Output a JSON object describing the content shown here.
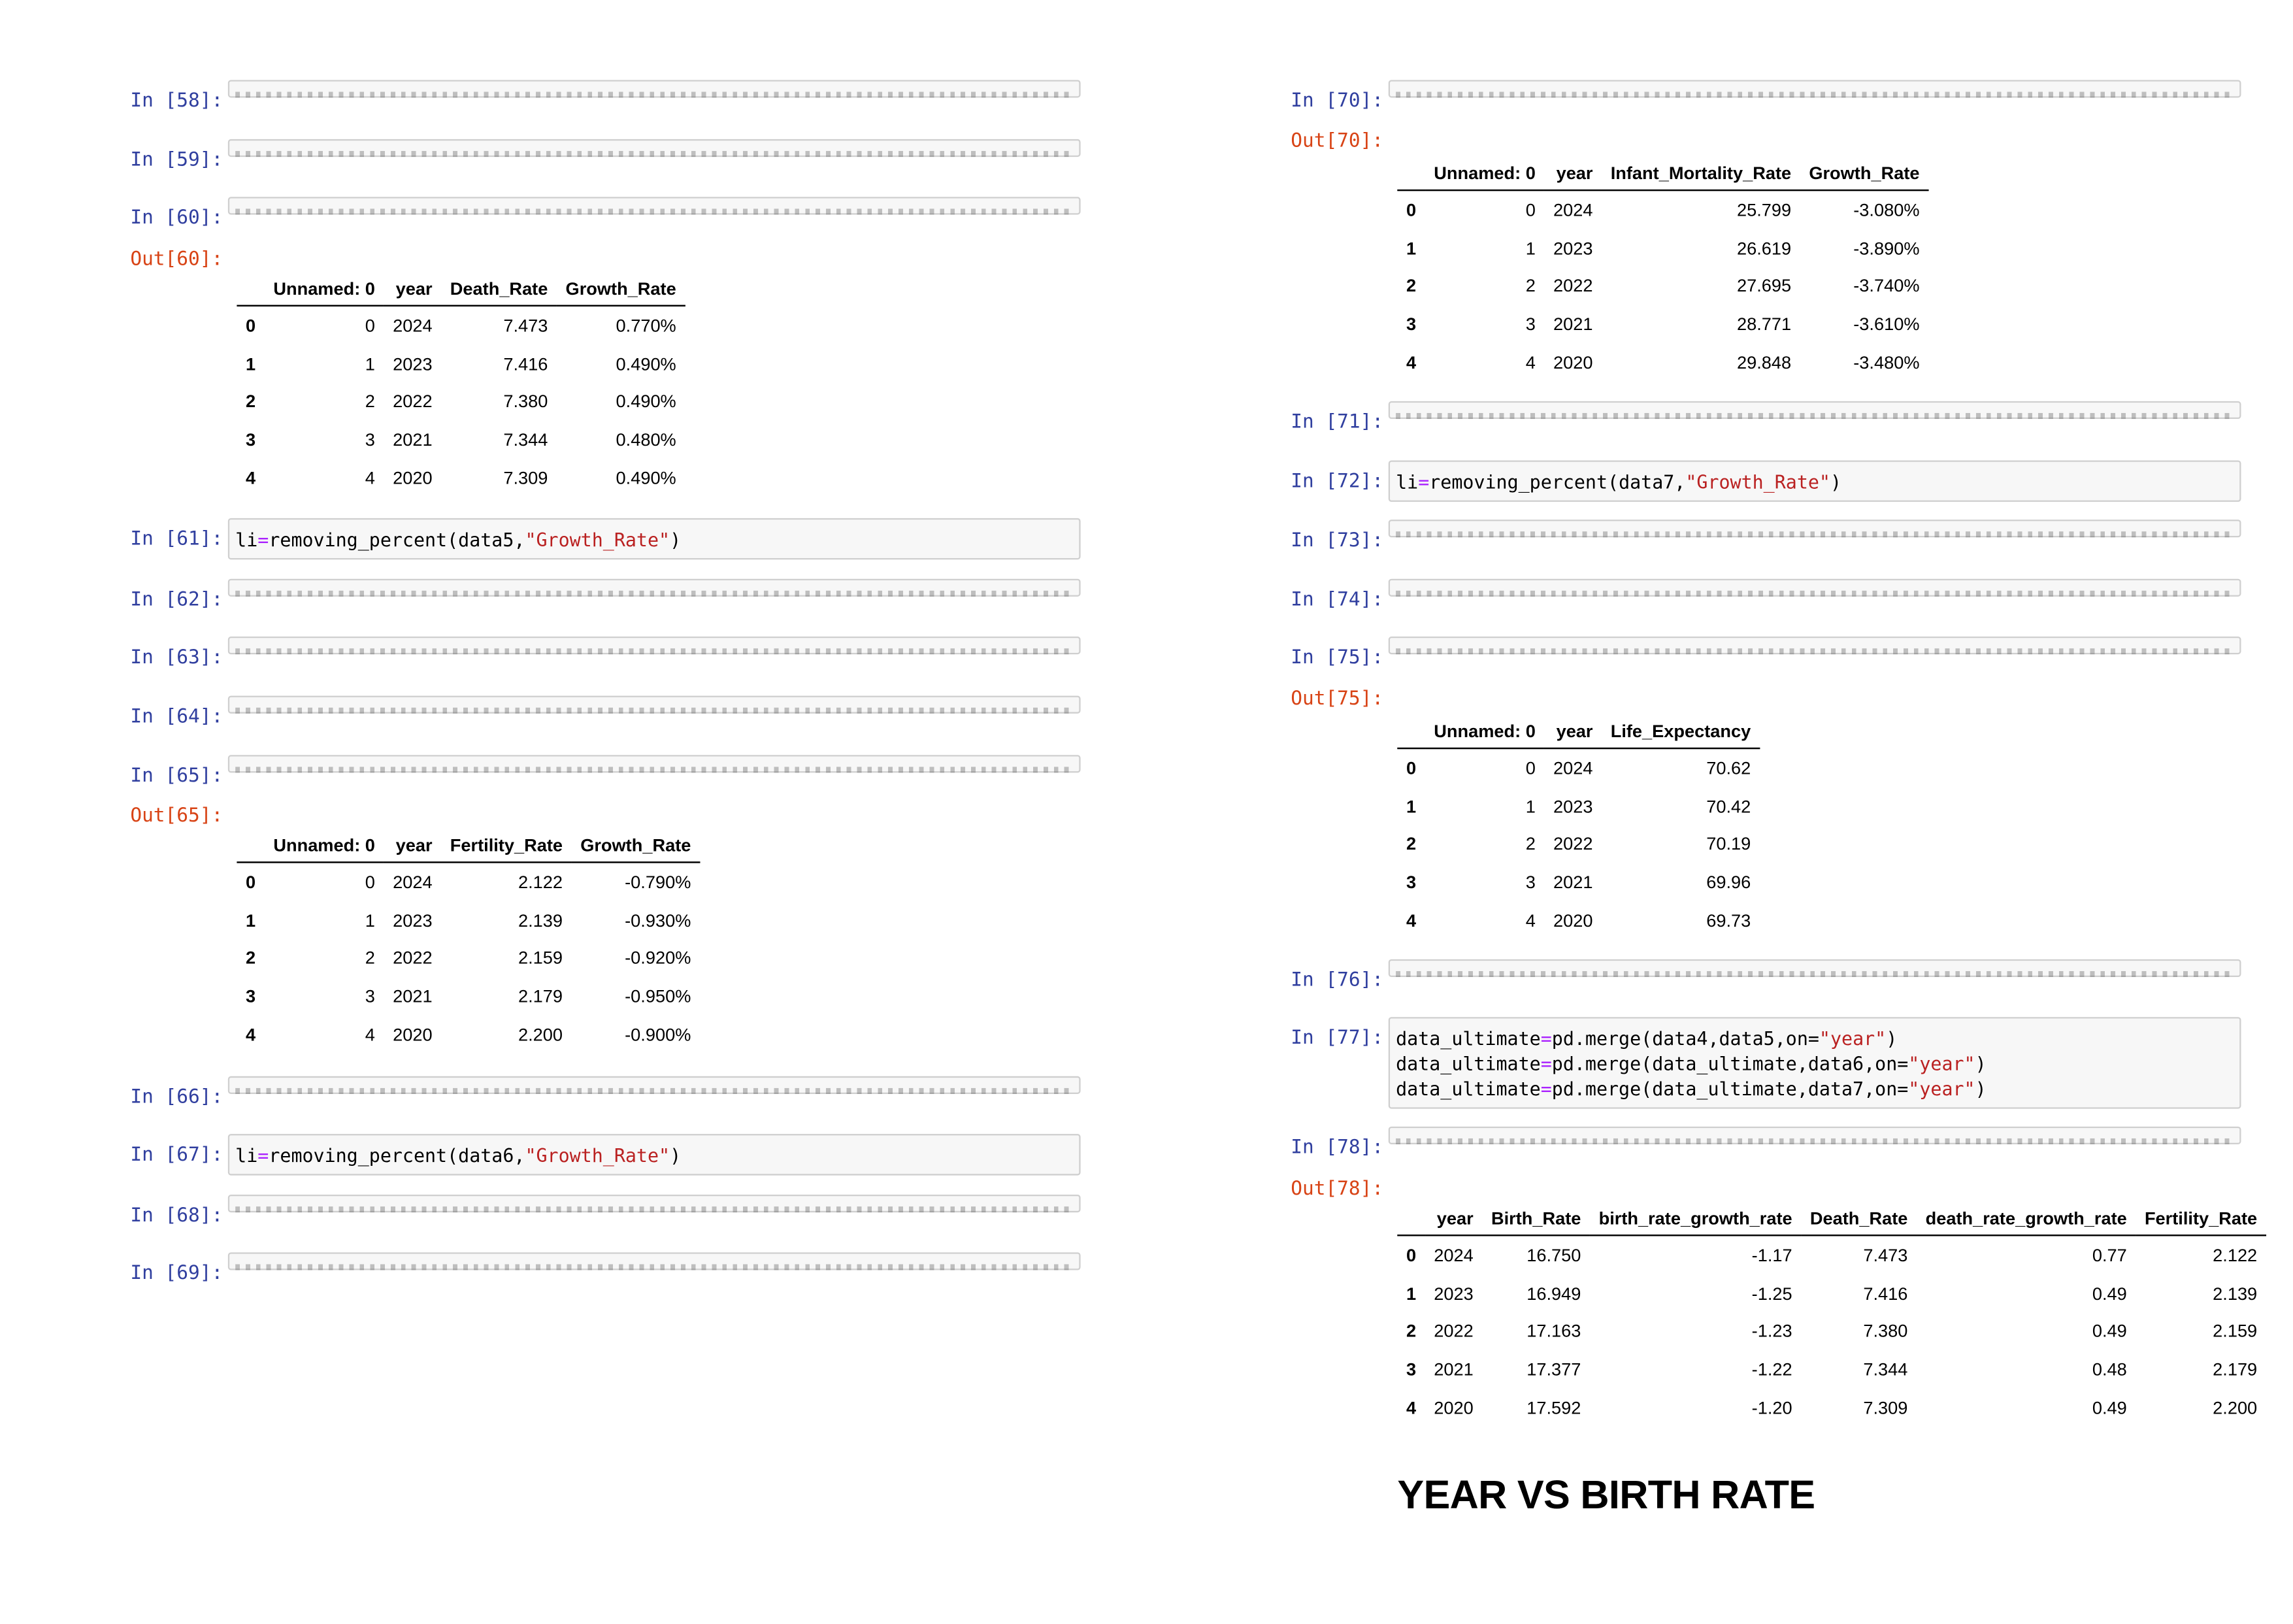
{
  "left": {
    "c58": {
      "prompt": "In [58]:"
    },
    "c59": {
      "prompt": "In [59]:"
    },
    "c60": {
      "prompt": "In [60]:"
    },
    "o60": {
      "prompt": "Out[60]:",
      "columns": [
        "",
        "Unnamed: 0",
        "year",
        "Death_Rate",
        "Growth_Rate"
      ],
      "rows": [
        [
          "0",
          "0",
          "2024",
          "7.473",
          "0.770%"
        ],
        [
          "1",
          "1",
          "2023",
          "7.416",
          "0.490%"
        ],
        [
          "2",
          "2",
          "2022",
          "7.380",
          "0.490%"
        ],
        [
          "3",
          "3",
          "2021",
          "7.344",
          "0.480%"
        ],
        [
          "4",
          "4",
          "2020",
          "7.309",
          "0.490%"
        ]
      ]
    },
    "c61": {
      "prompt": "In [61]:",
      "line1_a": "li",
      "line1_b": "=",
      "line1_c": "removing_percent(data5,",
      "line1_d": "\"Growth_Rate\"",
      "line1_e": ")"
    },
    "c62": {
      "prompt": "In [62]:"
    },
    "c63": {
      "prompt": "In [63]:"
    },
    "c64": {
      "prompt": "In [64]:"
    },
    "c65": {
      "prompt": "In [65]:"
    },
    "o65": {
      "prompt": "Out[65]:",
      "columns": [
        "",
        "Unnamed: 0",
        "year",
        "Fertility_Rate",
        "Growth_Rate"
      ],
      "rows": [
        [
          "0",
          "0",
          "2024",
          "2.122",
          "-0.790%"
        ],
        [
          "1",
          "1",
          "2023",
          "2.139",
          "-0.930%"
        ],
        [
          "2",
          "2",
          "2022",
          "2.159",
          "-0.920%"
        ],
        [
          "3",
          "3",
          "2021",
          "2.179",
          "-0.950%"
        ],
        [
          "4",
          "4",
          "2020",
          "2.200",
          "-0.900%"
        ]
      ]
    },
    "c66": {
      "prompt": "In [66]:"
    },
    "c67": {
      "prompt": "In [67]:",
      "line1_a": "li",
      "line1_b": "=",
      "line1_c": "removing_percent(data6,",
      "line1_d": "\"Growth_Rate\"",
      "line1_e": ")"
    },
    "c68": {
      "prompt": "In [68]:"
    },
    "c69": {
      "prompt": "In [69]:"
    }
  },
  "right": {
    "c70": {
      "prompt": "In [70]:"
    },
    "o70": {
      "prompt": "Out[70]:",
      "columns": [
        "",
        "Unnamed: 0",
        "year",
        "Infant_Mortality_Rate",
        "Growth_Rate"
      ],
      "rows": [
        [
          "0",
          "0",
          "2024",
          "25.799",
          "-3.080%"
        ],
        [
          "1",
          "1",
          "2023",
          "26.619",
          "-3.890%"
        ],
        [
          "2",
          "2",
          "2022",
          "27.695",
          "-3.740%"
        ],
        [
          "3",
          "3",
          "2021",
          "28.771",
          "-3.610%"
        ],
        [
          "4",
          "4",
          "2020",
          "29.848",
          "-3.480%"
        ]
      ]
    },
    "c71": {
      "prompt": "In [71]:"
    },
    "c72": {
      "prompt": "In [72]:",
      "line1_a": "li",
      "line1_b": "=",
      "line1_c": "removing_percent(data7,",
      "line1_d": "\"Growth_Rate\"",
      "line1_e": ")"
    },
    "c73": {
      "prompt": "In [73]:"
    },
    "c74": {
      "prompt": "In [74]:"
    },
    "c75": {
      "prompt": "In [75]:"
    },
    "o75": {
      "prompt": "Out[75]:",
      "columns": [
        "",
        "Unnamed: 0",
        "year",
        "Life_Expectancy"
      ],
      "rows": [
        [
          "0",
          "0",
          "2024",
          "70.62"
        ],
        [
          "1",
          "1",
          "2023",
          "70.42"
        ],
        [
          "2",
          "2",
          "2022",
          "70.19"
        ],
        [
          "3",
          "3",
          "2021",
          "69.96"
        ],
        [
          "4",
          "4",
          "2020",
          "69.73"
        ]
      ]
    },
    "c76": {
      "prompt": "In [76]:"
    },
    "c77": {
      "prompt": "In [77]:",
      "lines": [
        {
          "a": "data_ultimate",
          "b": "=",
          "c": "pd.merge(data4,data5,on=",
          "d": "\"year\"",
          "e": ")"
        },
        {
          "a": "data_ultimate",
          "b": "=",
          "c": "pd.merge(data_ultimate,data6,on=",
          "d": "\"year\"",
          "e": ")"
        },
        {
          "a": "data_ultimate",
          "b": "=",
          "c": "pd.merge(data_ultimate,data7,on=",
          "d": "\"year\"",
          "e": ")"
        }
      ]
    },
    "c78": {
      "prompt": "In [78]:"
    },
    "o78": {
      "prompt": "Out[78]:",
      "columns": [
        "",
        "year",
        "Birth_Rate",
        "birth_rate_growth_rate",
        "Death_Rate",
        "death_rate_growth_rate",
        "Fertility_Rate"
      ],
      "rows": [
        [
          "0",
          "2024",
          "16.750",
          "-1.17",
          "7.473",
          "0.77",
          "2.122"
        ],
        [
          "1",
          "2023",
          "16.949",
          "-1.25",
          "7.416",
          "0.49",
          "2.139"
        ],
        [
          "2",
          "2022",
          "17.163",
          "-1.23",
          "7.380",
          "0.49",
          "2.159"
        ],
        [
          "3",
          "2021",
          "17.377",
          "-1.22",
          "7.344",
          "0.48",
          "2.179"
        ],
        [
          "4",
          "2020",
          "17.592",
          "-1.20",
          "7.309",
          "0.49",
          "2.200"
        ]
      ]
    },
    "heading": "YEAR VS BIRTH RATE"
  }
}
